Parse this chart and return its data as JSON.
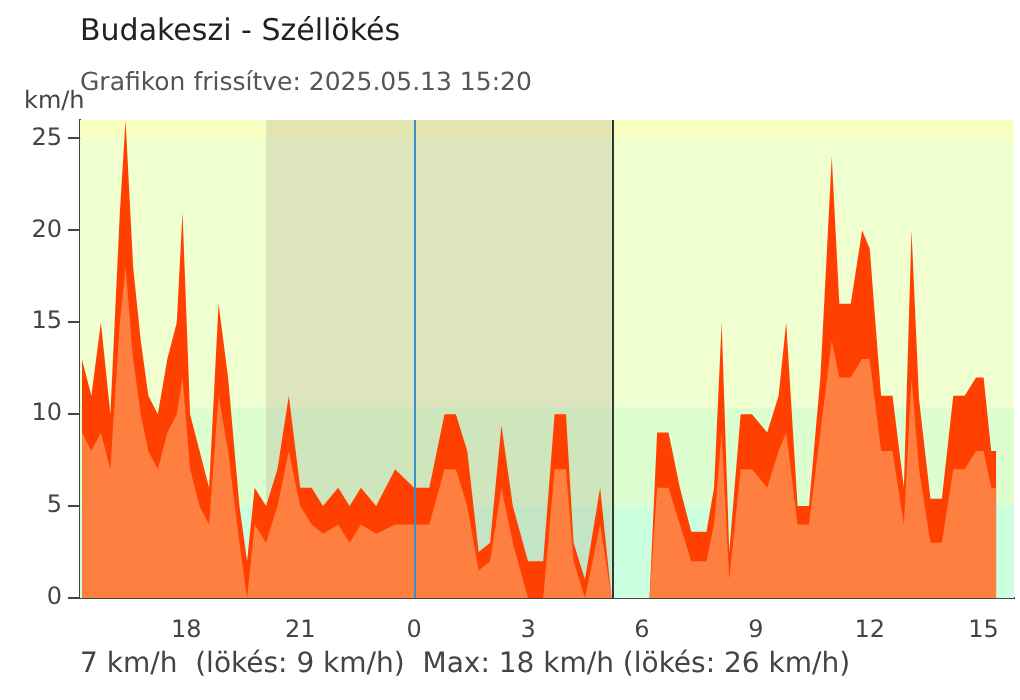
{
  "chart_data": {
    "type": "area",
    "title": "Budakeszi - Széllökés",
    "subtitle": "Grafikon frissítve: 2025.05.13 15:20",
    "ylabel": "km/h",
    "annotations": [
      "7 km/h  (lökés: 9 km/h)  Max: 18 km/h (lökés: 26 km/h)"
    ],
    "x": [
      "2025-05-12T15:15",
      "2025-05-12T15:30",
      "2025-05-12T15:45",
      "2025-05-12T16:00",
      "2025-05-12T16:15",
      "2025-05-12T16:24",
      "2025-05-12T16:36",
      "2025-05-12T16:48",
      "2025-05-12T17:00",
      "2025-05-12T17:15",
      "2025-05-12T17:30",
      "2025-05-12T17:45",
      "2025-05-12T17:54",
      "2025-05-12T18:06",
      "2025-05-12T18:21",
      "2025-05-12T18:36",
      "2025-05-12T18:51",
      "2025-05-12T19:06",
      "2025-05-12T19:24",
      "2025-05-12T19:36",
      "2025-05-12T19:48",
      "2025-05-12T20:06",
      "2025-05-12T20:24",
      "2025-05-12T20:42",
      "2025-05-12T21:00",
      "2025-05-12T21:18",
      "2025-05-12T21:36",
      "2025-05-12T22:00",
      "2025-05-12T22:18",
      "2025-05-12T22:36",
      "2025-05-12T23:00",
      "2025-05-12T23:30",
      "2025-05-13T00:00",
      "2025-05-13T00:24",
      "2025-05-13T00:48",
      "2025-05-13T01:06",
      "2025-05-13T01:24",
      "2025-05-13T01:42",
      "2025-05-13T02:00",
      "2025-05-13T02:18",
      "2025-05-13T02:36",
      "2025-05-13T03:00",
      "2025-05-13T03:24",
      "2025-05-13T03:42",
      "2025-05-13T04:00",
      "2025-05-13T04:12",
      "2025-05-13T04:30",
      "2025-05-13T04:54",
      "2025-05-13T05:12",
      "2025-05-13T05:42",
      "2025-05-13T06:12",
      "2025-05-13T06:24",
      "2025-05-13T06:42",
      "2025-05-13T07:00",
      "2025-05-13T07:18",
      "2025-05-13T07:42",
      "2025-05-13T07:54",
      "2025-05-13T08:06",
      "2025-05-13T08:18",
      "2025-05-13T08:36",
      "2025-05-13T08:54",
      "2025-05-13T09:18",
      "2025-05-13T09:36",
      "2025-05-13T09:48",
      "2025-05-13T10:06",
      "2025-05-13T10:24",
      "2025-05-13T10:42",
      "2025-05-13T11:00",
      "2025-05-13T11:12",
      "2025-05-13T11:30",
      "2025-05-13T11:48",
      "2025-05-13T12:00",
      "2025-05-13T12:18",
      "2025-05-13T12:36",
      "2025-05-13T12:54",
      "2025-05-13T13:06",
      "2025-05-13T13:18",
      "2025-05-13T13:36",
      "2025-05-13T13:54",
      "2025-05-13T14:12",
      "2025-05-13T14:30",
      "2025-05-13T14:48",
      "2025-05-13T15:00",
      "2025-05-13T15:12",
      "2025-05-13T15:20"
    ],
    "series": [
      {
        "color": "#ff4000",
        "values": [
          13,
          11,
          15,
          10,
          21,
          26,
          18,
          14,
          11,
          10,
          13,
          15,
          21,
          10,
          8,
          6,
          16,
          12,
          5,
          2,
          6,
          5,
          7,
          11,
          6,
          6,
          5,
          6,
          5,
          6,
          5,
          7,
          6,
          6,
          10,
          10,
          8,
          2.5,
          3,
          9.4,
          5,
          2,
          2,
          10,
          10,
          3,
          1,
          6,
          0,
          0,
          0,
          9,
          9,
          6,
          3.6,
          3.6,
          6,
          15,
          2.5,
          10,
          10,
          9,
          11,
          15,
          5,
          5,
          12,
          24,
          16,
          16,
          20,
          19,
          11,
          11,
          6,
          20,
          10.8,
          5.4,
          5.4,
          11,
          11,
          12,
          12,
          8,
          8
        ]
      },
      {
        "color": "#ff7f40",
        "values": [
          9,
          8,
          9,
          7,
          15,
          18,
          13,
          10,
          8,
          7,
          9,
          10,
          12,
          7,
          5,
          4,
          11,
          8,
          3,
          0,
          4,
          3,
          5,
          8,
          5,
          4,
          3.5,
          4,
          3,
          4,
          3.5,
          4,
          4,
          4,
          7,
          7,
          5,
          1.5,
          2,
          6,
          3,
          0,
          0,
          7,
          7,
          2,
          0,
          4,
          0,
          0,
          0,
          6,
          6,
          4,
          2,
          2,
          4,
          9,
          1,
          7,
          7,
          6,
          8,
          9,
          4,
          4,
          9,
          14,
          12,
          12,
          13,
          13,
          8,
          8,
          4,
          12,
          7,
          3,
          3,
          7,
          7,
          8,
          8,
          6,
          6
        ]
      }
    ],
    "xlim": [
      "2025-05-12T15:12",
      "2025-05-13T15:48"
    ],
    "xticks": [
      {
        "value": "2025-05-12T18:00",
        "label": "18"
      },
      {
        "value": "2025-05-12T21:00",
        "label": "21"
      },
      {
        "value": "2025-05-13T00:00",
        "label": "0"
      },
      {
        "value": "2025-05-13T03:00",
        "label": "3"
      },
      {
        "value": "2025-05-13T06:00",
        "label": "6"
      },
      {
        "value": "2025-05-13T09:00",
        "label": "9"
      },
      {
        "value": "2025-05-13T12:00",
        "label": "12"
      },
      {
        "value": "2025-05-13T15:00",
        "label": "15"
      }
    ],
    "ylim": [
      0,
      26
    ],
    "yticks": [
      0,
      5,
      10,
      15,
      20,
      25
    ],
    "bands": [
      {
        "axis": "y",
        "from": 0,
        "to": 5,
        "color": "#ccffdd"
      },
      {
        "axis": "y",
        "from": 5,
        "to": 10.4,
        "color": "#ddffd0"
      },
      {
        "axis": "y",
        "from": 10.4,
        "to": 25,
        "color": "#f0ffd0"
      },
      {
        "axis": "y",
        "from": 25,
        "to": 26,
        "color": "#f8ffc0"
      },
      {
        "axis": "x",
        "from": "2025-05-12T20:06",
        "to": "2025-05-13T05:12",
        "color": "#b0a890"
      }
    ],
    "ref_lines": [
      {
        "axis": "x",
        "value": "2025-05-13T00:00",
        "color": "#3b8fc4"
      },
      {
        "axis": "x",
        "value": "2025-05-13T05:12",
        "color": "#333333"
      }
    ],
    "grid": false,
    "legend": false
  }
}
